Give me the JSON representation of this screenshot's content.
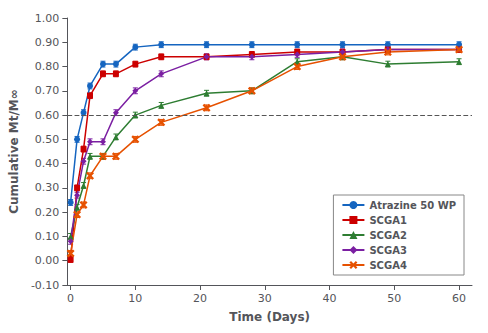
{
  "chart_data": {
    "type": "line",
    "xlabel": "Time (Days)",
    "ylabel": "Cumulative Mt/M∞",
    "x": [
      0,
      1,
      2,
      3,
      5,
      7,
      10,
      14,
      21,
      28,
      35,
      42,
      49,
      60
    ],
    "series": [
      {
        "name": "Atrazine 50 WP",
        "color": "#1565c0",
        "marker": "circle",
        "values": [
          0.24,
          0.5,
          0.61,
          0.72,
          0.81,
          0.81,
          0.88,
          0.89,
          0.89,
          0.89,
          0.89,
          0.89,
          0.89,
          0.89
        ]
      },
      {
        "name": "SCGA1",
        "color": "#cc0000",
        "marker": "square",
        "values": [
          0.005,
          0.3,
          0.46,
          0.68,
          0.77,
          0.77,
          0.81,
          0.84,
          0.84,
          0.85,
          0.86,
          0.86,
          0.87,
          0.87
        ]
      },
      {
        "name": "SCGA2",
        "color": "#2e7d32",
        "marker": "triangle",
        "values": [
          0.1,
          0.22,
          0.31,
          0.43,
          0.43,
          0.51,
          0.6,
          0.64,
          0.69,
          0.7,
          0.82,
          0.84,
          0.81,
          0.82
        ]
      },
      {
        "name": "SCGA3",
        "color": "#7b1fa2",
        "marker": "diamond",
        "values": [
          0.08,
          0.27,
          0.41,
          0.49,
          0.49,
          0.61,
          0.7,
          0.77,
          0.84,
          0.84,
          0.85,
          0.86,
          0.87,
          0.87
        ]
      },
      {
        "name": "SCGA4",
        "color": "#e65100",
        "marker": "x",
        "values": [
          0.03,
          0.19,
          0.23,
          0.35,
          0.43,
          0.43,
          0.5,
          0.57,
          0.63,
          0.7,
          0.8,
          0.84,
          0.86,
          0.87
        ]
      }
    ],
    "error_bar": 0.012,
    "reference_line": 0.6,
    "xlim": [
      -0.5,
      62
    ],
    "xticks": [
      0,
      10,
      20,
      30,
      40,
      50,
      60
    ],
    "ylim": [
      -0.1,
      1.0
    ],
    "yticks": [
      {
        "value": -0.1,
        "label": "-0.10"
      },
      {
        "value": 0.0,
        "label": "0.00"
      },
      {
        "value": 0.1,
        "label": "0.10"
      },
      {
        "value": 0.2,
        "label": "0.20"
      },
      {
        "value": 0.3,
        "label": "0.30"
      },
      {
        "value": 0.4,
        "label": "0.40"
      },
      {
        "value": 0.5,
        "label": "0.50"
      },
      {
        "value": 0.6,
        "label": "0.60"
      },
      {
        "value": 0.7,
        "label": "0.70"
      },
      {
        "value": 0.8,
        "label": "0.80"
      },
      {
        "value": 0.9,
        "label": "0.90"
      },
      {
        "value": 1.0,
        "label": "1.00"
      }
    ],
    "grid": false,
    "legend": "lower right"
  }
}
